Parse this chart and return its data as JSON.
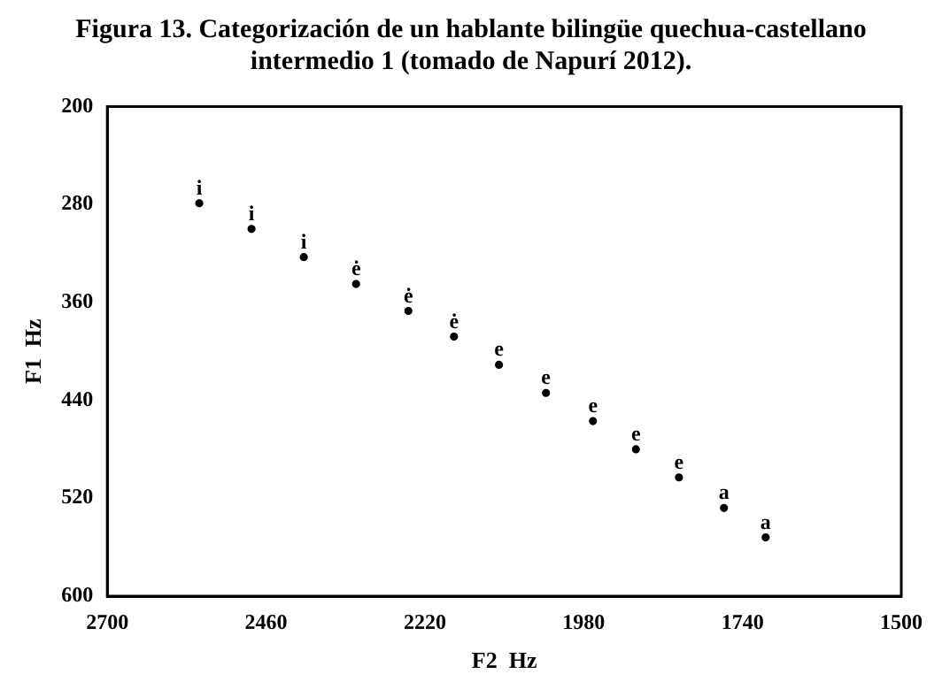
{
  "chart_data": {
    "type": "scatter",
    "title": "Figura 13. Categorización de un hablante bilingüe quechua-castellano intermedio 1 (tomado de Napurí 2012).",
    "xlabel": "F2  Hz",
    "ylabel": "F1  Hz",
    "xlim": [
      2700,
      1500
    ],
    "xticks": [
      2700,
      2460,
      2220,
      1980,
      1740,
      1500
    ],
    "ylim": [
      600,
      200
    ],
    "yticks": [
      200,
      280,
      360,
      440,
      520,
      600
    ],
    "grid": false,
    "legend": false,
    "series": [
      {
        "name": "i",
        "color": "#000000",
        "x": [
          2561,
          2482,
          2403
        ],
        "values": [
          279,
          300,
          323
        ]
      },
      {
        "name": "ė",
        "color": "#000000",
        "x": [
          2324,
          2245,
          2176
        ],
        "values": [
          345,
          367,
          388
        ]
      },
      {
        "name": "e",
        "color": "#000000",
        "x": [
          2108,
          2037,
          1966,
          1901,
          1836
        ],
        "values": [
          411,
          434,
          457,
          480,
          503
        ]
      },
      {
        "name": "a",
        "color": "#000000",
        "x": [
          1768,
          1705
        ],
        "values": [
          528,
          552
        ]
      }
    ]
  }
}
